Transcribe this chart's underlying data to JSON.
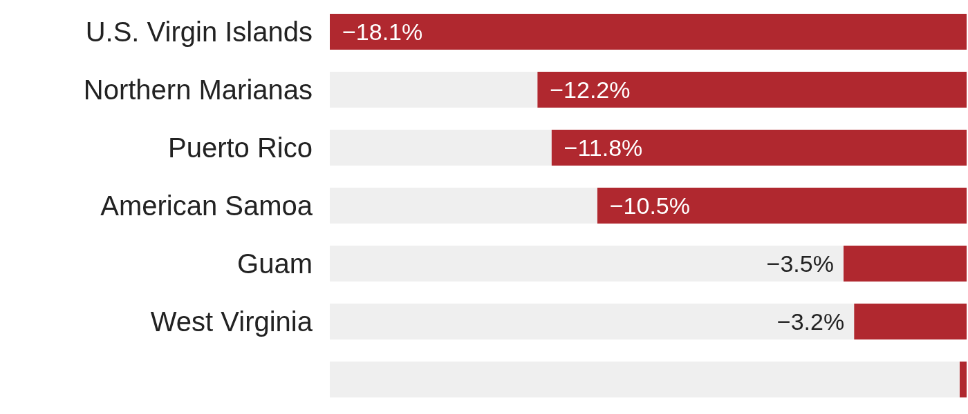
{
  "chart_data": {
    "type": "bar",
    "orientation": "horizontal",
    "stacked": true,
    "categories": [
      "U.S. Virgin Islands",
      "Northern Marianas",
      "Puerto Rico",
      "American Samoa",
      "Guam",
      "West Virginia",
      null
    ],
    "series": [
      {
        "color": "#b0282f",
        "values": [
          -18.1,
          -12.2,
          -11.8,
          -10.5,
          -3.5,
          -3.2,
          -0.2
        ],
        "value_labels": [
          "−18.1%",
          "−12.2%",
          "−11.8%",
          "−10.5%",
          "−3.5%",
          "−3.2%",
          null
        ]
      },
      {
        "color": "#efefef",
        "values": [
          null,
          -5.9,
          -6.3,
          -7.6,
          -14.6,
          -14.9,
          -17.9
        ]
      }
    ],
    "xlim": [
      -18.1,
      0
    ],
    "tick_labels": "y"
  }
}
